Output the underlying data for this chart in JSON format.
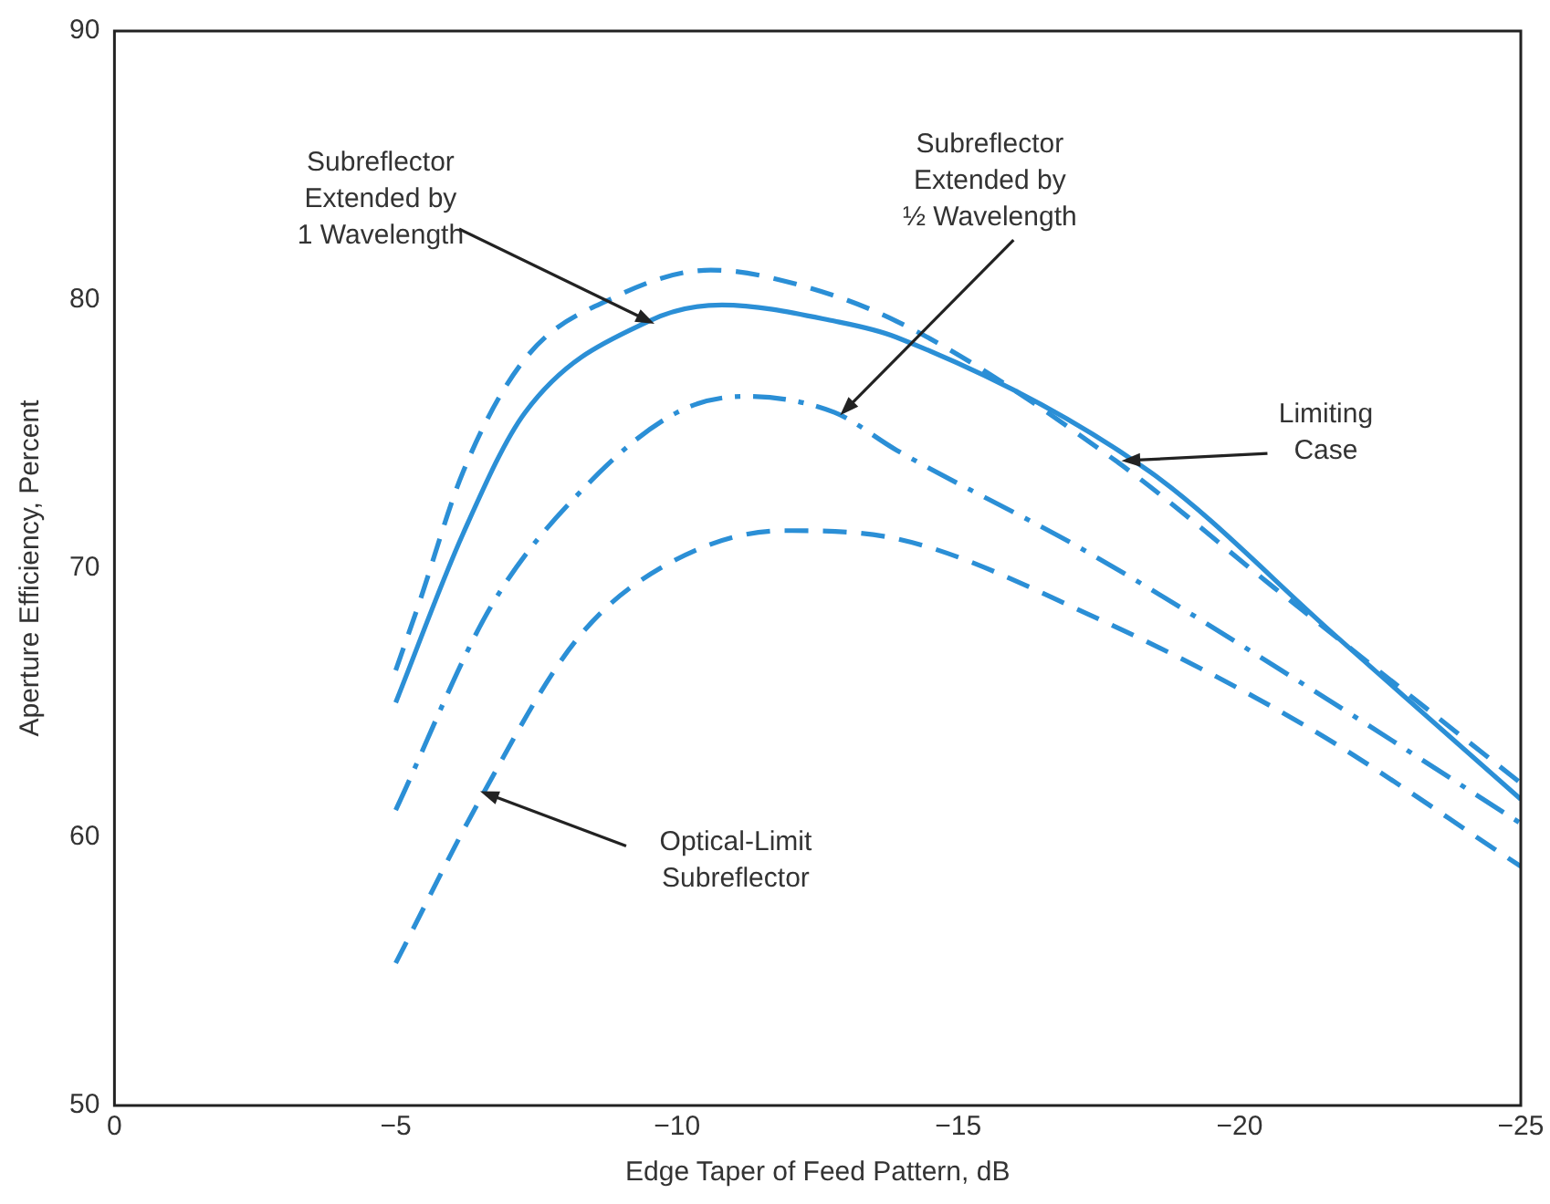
{
  "chart_data": {
    "type": "line",
    "xlabel": "Edge Taper of Feed Pattern, dB",
    "ylabel": "Aperture Efficiency, Percent",
    "xlim": [
      0,
      -25
    ],
    "xticks": [
      0,
      {
        "value": -5,
        "label": "−5"
      },
      {
        "value": -10,
        "label": "−10"
      },
      {
        "value": -15,
        "label": "−15"
      },
      {
        "value": -20,
        "label": "−20"
      },
      {
        "value": -25,
        "label": "−25"
      }
    ],
    "ylim": [
      50,
      90
    ],
    "yticks": [
      50,
      60,
      70,
      80,
      90
    ],
    "grid": false,
    "legend": false,
    "marker": "none",
    "series": [
      {
        "color": "#2b8fd6",
        "line_style": "dashed",
        "x": [
          -5,
          -5.4,
          -6.2,
          -7.3,
          -8.9,
          -10.6,
          -11.7,
          -13.9,
          -17.8,
          -20.6,
          -25
        ],
        "values": [
          66.2,
          68.6,
          73.6,
          77.8,
          80.1,
          81.1,
          80.8,
          79.2,
          74.0,
          69.3,
          62.0
        ]
      },
      {
        "color": "#2b8fd6",
        "line_style": "solid",
        "x": [
          -5,
          -6.2,
          -7.3,
          -9.5,
          -10.8,
          -12.8,
          -13.9,
          -18.4,
          -21.7,
          -25
        ],
        "values": [
          65.0,
          71.3,
          75.8,
          79.2,
          79.8,
          79.2,
          78.6,
          73.6,
          67.5,
          61.4
        ]
      },
      {
        "color": "#2b8fd6",
        "line_style": "dashdot",
        "x": [
          -5,
          -6.7,
          -8.4,
          -10,
          -11.2,
          -12.8,
          -13.9,
          -17.3,
          -21.2,
          -25
        ],
        "values": [
          61.0,
          68.6,
          73.1,
          75.8,
          76.4,
          75.8,
          74.4,
          70.6,
          65.6,
          60.5
        ]
      },
      {
        "color": "#2b8fd6",
        "line_style": "dashed",
        "x": [
          -5,
          -6.5,
          -8.2,
          -9.7,
          -11.9,
          -13.9,
          -17.3,
          -21.2,
          -25
        ],
        "values": [
          55.3,
          61.4,
          67.3,
          70.0,
          71.4,
          71.1,
          68.3,
          64.1,
          58.9
        ]
      }
    ],
    "annotations": [
      {
        "text": "Subreflector\nExtended by\n1 Wavelength",
        "x": -9.6,
        "y": 79.1
      },
      {
        "text": "Subreflector\nExtended by\n½ Wavelength",
        "x": -12.9,
        "y": 75.7
      },
      {
        "text": "Limiting\nCase",
        "x": -17.9,
        "y": 74.0
      },
      {
        "text": "Optical-Limit\nSubreflector",
        "x": -6.5,
        "y": 61.7
      }
    ]
  }
}
